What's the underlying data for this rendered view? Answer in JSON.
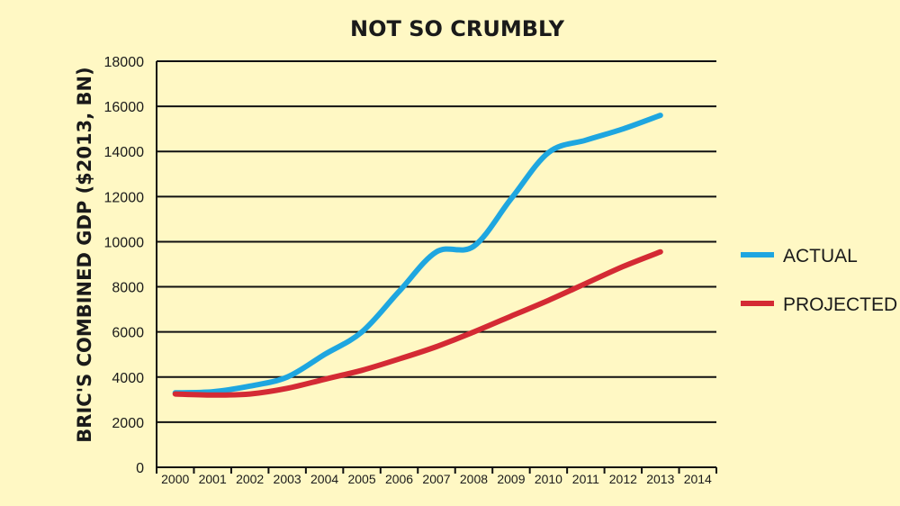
{
  "chart_data": {
    "type": "line",
    "title": "NOT SO CRUMBLY",
    "xlabel": "",
    "ylabel": "BRIC'S COMBINED GDP ($2013, BN)",
    "x": [
      "2000",
      "2001",
      "2002",
      "2003",
      "2004",
      "2005",
      "2006",
      "2007",
      "2008",
      "2009",
      "2010",
      "2011",
      "2012",
      "2013",
      "2014"
    ],
    "ylim": [
      0,
      18000
    ],
    "yticks": [
      0,
      2000,
      4000,
      6000,
      8000,
      10000,
      12000,
      14000,
      16000,
      18000
    ],
    "grid": true,
    "legend_position": "right",
    "series": [
      {
        "name": "ACTUAL",
        "color": "#1EA6E0",
        "values": [
          3300,
          3350,
          3600,
          4000,
          5000,
          6000,
          7800,
          9550,
          9800,
          11900,
          13950,
          14500,
          15000,
          15600,
          null
        ]
      },
      {
        "name": "PROJECTED",
        "color": "#D42A34",
        "values": [
          3250,
          3200,
          3250,
          3500,
          3900,
          4300,
          4800,
          5350,
          6000,
          6700,
          7400,
          8150,
          8900,
          9550,
          null
        ]
      }
    ]
  }
}
